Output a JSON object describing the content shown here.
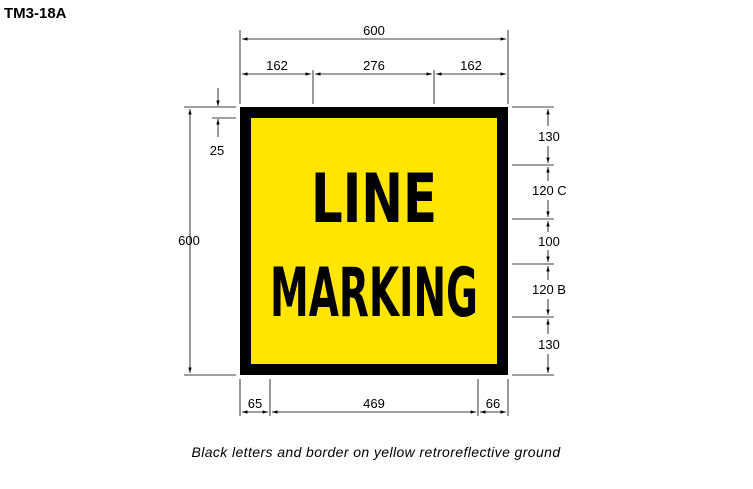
{
  "drawing_code": "TM3-18A",
  "sign": {
    "line1": "LINE",
    "line2": "MARKING",
    "colors": {
      "background": "#ffe500",
      "border": "#000000",
      "legend": "#000000"
    }
  },
  "dimensions": {
    "overall_width": "600",
    "top_left": "162",
    "top_middle": "276",
    "top_right": "162",
    "overall_height": "600",
    "border_width": "25",
    "right_1": "130",
    "right_2": "120 C",
    "right_3": "100",
    "right_4": "120 B",
    "right_5": "130",
    "bottom_left": "65",
    "bottom_middle": "469",
    "bottom_right": "66"
  },
  "caption": "Black letters and border on yellow retroreflective ground"
}
